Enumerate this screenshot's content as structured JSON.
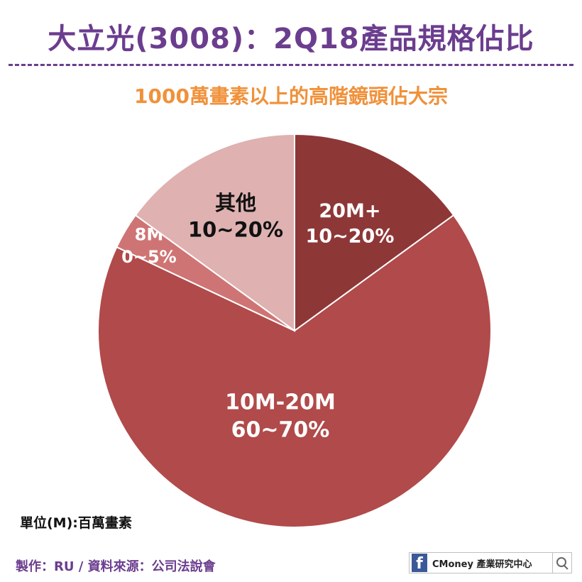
{
  "header": {
    "title": "大立光(3008)：2Q18產品規格佔比",
    "subtitle": "1000萬畫素以上的高階鏡頭佔大宗"
  },
  "chart_data": {
    "type": "pie",
    "title": "大立光(3008)：2Q18產品規格佔比",
    "subtitle": "1000萬畫素以上的高階鏡頭佔大宗",
    "slices": [
      {
        "label": "20M+",
        "range": "10~20%",
        "value": 15,
        "color": "#8e3737",
        "text_color": "#ffffff"
      },
      {
        "label": "10M-20M",
        "range": "60~70%",
        "value": 67,
        "color": "#b14a4a",
        "text_color": "#ffffff"
      },
      {
        "label": "8M",
        "range": "0~5%",
        "value": 3,
        "color": "#cf7474",
        "text_color": "#ffffff"
      },
      {
        "label": "其他",
        "range": "10~20%",
        "value": 15,
        "color": "#dfb1b1",
        "text_color": "#111111"
      }
    ],
    "start_angle_deg": 0,
    "direction": "clockwise"
  },
  "notes": {
    "unit": "單位(M):百萬畫素",
    "source": "製作：RU  / 資料來源：公司法說會"
  },
  "brand": {
    "fb_letter": "f",
    "text": "CMoney 產業研究中心",
    "icon": "search-icon"
  }
}
